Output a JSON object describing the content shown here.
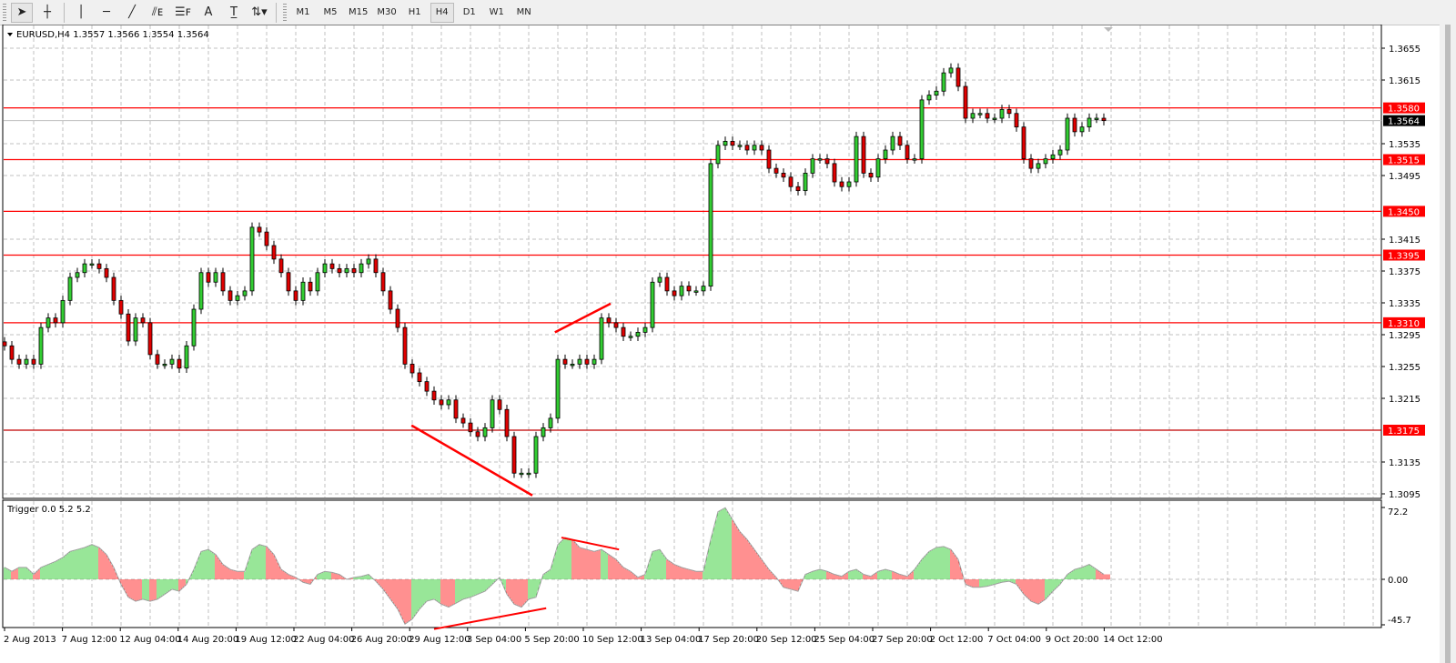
{
  "toolbar": {
    "tools": [
      {
        "name": "cursor-icon",
        "glyph": "➤",
        "active": true
      },
      {
        "name": "crosshair-icon",
        "glyph": "┼"
      },
      {
        "name": "vertical-line-icon",
        "glyph": "│"
      },
      {
        "name": "horizontal-line-icon",
        "glyph": "─"
      },
      {
        "name": "trendline-icon",
        "glyph": "╱"
      },
      {
        "name": "equidistant-channel-icon",
        "glyph": "⫽ᴇ"
      },
      {
        "name": "fibonacci-icon",
        "glyph": "☰ꜰ"
      },
      {
        "name": "text-icon",
        "glyph": "A"
      },
      {
        "name": "text-label-icon",
        "glyph": "T̲"
      },
      {
        "name": "arrows-dropdown-icon",
        "glyph": "⇅▾"
      }
    ],
    "timeframes": [
      "M1",
      "M5",
      "M15",
      "M30",
      "H1",
      "H4",
      "D1",
      "W1",
      "MN"
    ],
    "active_timeframe": "H4"
  },
  "chart_data": [
    {
      "type": "candlestick",
      "title": "EURUSD,H4  1.3557 1.3566 1.3554 1.3564",
      "symbol": "EURUSD",
      "period": "H4",
      "last_bar": {
        "open": 1.3557,
        "high": 1.3566,
        "low": 1.3554,
        "close": 1.3564
      },
      "ylim": [
        1.309,
        1.3695
      ],
      "y_ticks": [
        "1.3655",
        "1.3615",
        "1.3535",
        "1.3495",
        "1.3415",
        "1.3375",
        "1.3335",
        "1.3295",
        "1.3255",
        "1.3215",
        "1.3135",
        "1.3095"
      ],
      "x_ticks": [
        "2 Aug 2013",
        "7 Aug 12:00",
        "12 Aug 04:00",
        "14 Aug 20:00",
        "19 Aug 12:00",
        "22 Aug 04:00",
        "26 Aug 20:00",
        "29 Aug 12:00",
        "3 Sep 04:00",
        "5 Sep 20:00",
        "10 Sep 12:00",
        "13 Sep 04:00",
        "17 Sep 20:00",
        "20 Sep 12:00",
        "25 Sep 04:00",
        "27 Sep 20:00",
        "2 Oct 12:00",
        "7 Oct 04:00",
        "9 Oct 20:00",
        "14 Oct 12:00"
      ],
      "grid": true,
      "close": [
        1.3281,
        1.3264,
        1.3258,
        1.3264,
        1.3258,
        1.3304,
        1.3316,
        1.331,
        1.3338,
        1.3367,
        1.3373,
        1.3384,
        1.3384,
        1.3378,
        1.3367,
        1.3338,
        1.3321,
        1.3287,
        1.3316,
        1.331,
        1.327,
        1.3258,
        1.3258,
        1.3264,
        1.3253,
        1.3281,
        1.3327,
        1.3373,
        1.3361,
        1.3373,
        1.335,
        1.3338,
        1.3344,
        1.335,
        1.343,
        1.3424,
        1.3407,
        1.339,
        1.3373,
        1.335,
        1.3338,
        1.3361,
        1.335,
        1.3373,
        1.3384,
        1.3378,
        1.3373,
        1.3378,
        1.3373,
        1.3384,
        1.339,
        1.3373,
        1.335,
        1.3327,
        1.3304,
        1.3258,
        1.3247,
        1.3236,
        1.3224,
        1.3213,
        1.3207,
        1.3213,
        1.319,
        1.3184,
        1.3173,
        1.3167,
        1.3178,
        1.3213,
        1.3201,
        1.3167,
        1.3121,
        1.3121,
        1.3121,
        1.3167,
        1.3178,
        1.319,
        1.3264,
        1.3258,
        1.3258,
        1.3264,
        1.3258,
        1.3264,
        1.3316,
        1.331,
        1.3304,
        1.3293,
        1.3293,
        1.3298,
        1.3304,
        1.3361,
        1.3367,
        1.335,
        1.3344,
        1.3356,
        1.335,
        1.335,
        1.3356,
        1.351,
        1.3533,
        1.3538,
        1.3533,
        1.3533,
        1.3527,
        1.3533,
        1.3527,
        1.3504,
        1.3498,
        1.3493,
        1.3481,
        1.3476,
        1.3498,
        1.3516,
        1.3516,
        1.351,
        1.3487,
        1.3481,
        1.3487,
        1.3544,
        1.3498,
        1.3493,
        1.3516,
        1.3527,
        1.3544,
        1.3533,
        1.3516,
        1.3516,
        1.359,
        1.3596,
        1.3601,
        1.3624,
        1.363,
        1.3607,
        1.3567,
        1.3573,
        1.3573,
        1.3567,
        1.3567,
        1.3578,
        1.3573,
        1.3556,
        1.3516,
        1.3504,
        1.351,
        1.3516,
        1.3521,
        1.3527,
        1.3567,
        1.355,
        1.3556,
        1.3567,
        1.3567,
        1.3564
      ],
      "levels": [
        {
          "label": "1.3580",
          "value": 1.358,
          "color": "#ff0000"
        },
        {
          "label": "1.3515",
          "value": 1.3515,
          "color": "#ff0000"
        },
        {
          "label": "1.3450",
          "value": 1.345,
          "color": "#ff0000"
        },
        {
          "label": "1.3395",
          "value": 1.3395,
          "color": "#ff0000"
        },
        {
          "label": "1.3310",
          "value": 1.331,
          "color": "#ff0000"
        },
        {
          "label": "1.3175",
          "value": 1.3175,
          "color": "#c00000"
        }
      ],
      "bid": {
        "label": "1.3564",
        "value": 1.3564
      },
      "trendlines": [
        {
          "from": {
            "bar": 55.9,
            "value": 1.3181
          },
          "to": {
            "bar": 72.5,
            "value": 1.3093
          }
        },
        {
          "from": {
            "bar": 75.6,
            "value": 1.3298
          },
          "to": {
            "bar": 83.25,
            "value": 1.3334
          }
        }
      ],
      "colors": {
        "bull": "#32cd32",
        "bear": "#e00000",
        "wick": "#000000",
        "grid": "#c0c0c0",
        "level": "#ff0000"
      }
    },
    {
      "type": "bar",
      "title": "Trigger 0.0 5.2 5.2",
      "ylim": [
        -45.7,
        72.2
      ],
      "y_ticks": [
        "72.2",
        "0.00",
        "-45.7"
      ],
      "values": [
        12,
        8,
        12,
        12,
        5,
        12,
        15,
        18,
        22,
        28,
        30,
        32,
        35,
        32,
        25,
        12,
        -5,
        -18,
        -22,
        -20,
        -22,
        -20,
        -15,
        -10,
        -12,
        -5,
        10,
        28,
        30,
        25,
        15,
        10,
        8,
        8,
        30,
        35,
        33,
        25,
        10,
        5,
        2,
        -3,
        -5,
        5,
        8,
        7,
        5,
        0,
        2,
        3,
        5,
        -2,
        -10,
        -20,
        -30,
        -45,
        -40,
        -30,
        -22,
        -20,
        -25,
        -28,
        -24,
        -20,
        -18,
        -15,
        -12,
        -5,
        2,
        -15,
        -25,
        -28,
        -20,
        -18,
        5,
        10,
        35,
        42,
        40,
        32,
        30,
        28,
        30,
        25,
        20,
        12,
        8,
        2,
        5,
        28,
        30,
        20,
        15,
        12,
        10,
        8,
        8,
        40,
        68,
        72,
        60,
        48,
        40,
        30,
        20,
        10,
        2,
        -8,
        -10,
        -12,
        5,
        8,
        10,
        8,
        5,
        3,
        8,
        10,
        5,
        3,
        8,
        10,
        8,
        5,
        3,
        10,
        20,
        28,
        32,
        33,
        30,
        20,
        -5,
        -8,
        -8,
        -7,
        -5,
        -3,
        -2,
        -5,
        -15,
        -22,
        -25,
        -20,
        -12,
        -5,
        5,
        10,
        12,
        15,
        10,
        5
      ],
      "trendlines": [
        {
          "from": {
            "bar": 76.5,
            "value": 42
          },
          "to": {
            "bar": 84.4,
            "value": 30
          }
        },
        {
          "from": {
            "bar": 59,
            "value": -50
          },
          "to": {
            "bar": 74.4,
            "value": -29
          }
        }
      ],
      "colors": {
        "up": "#32cd32",
        "down": "#ff2020",
        "line": "#a0a0a0"
      }
    }
  ]
}
